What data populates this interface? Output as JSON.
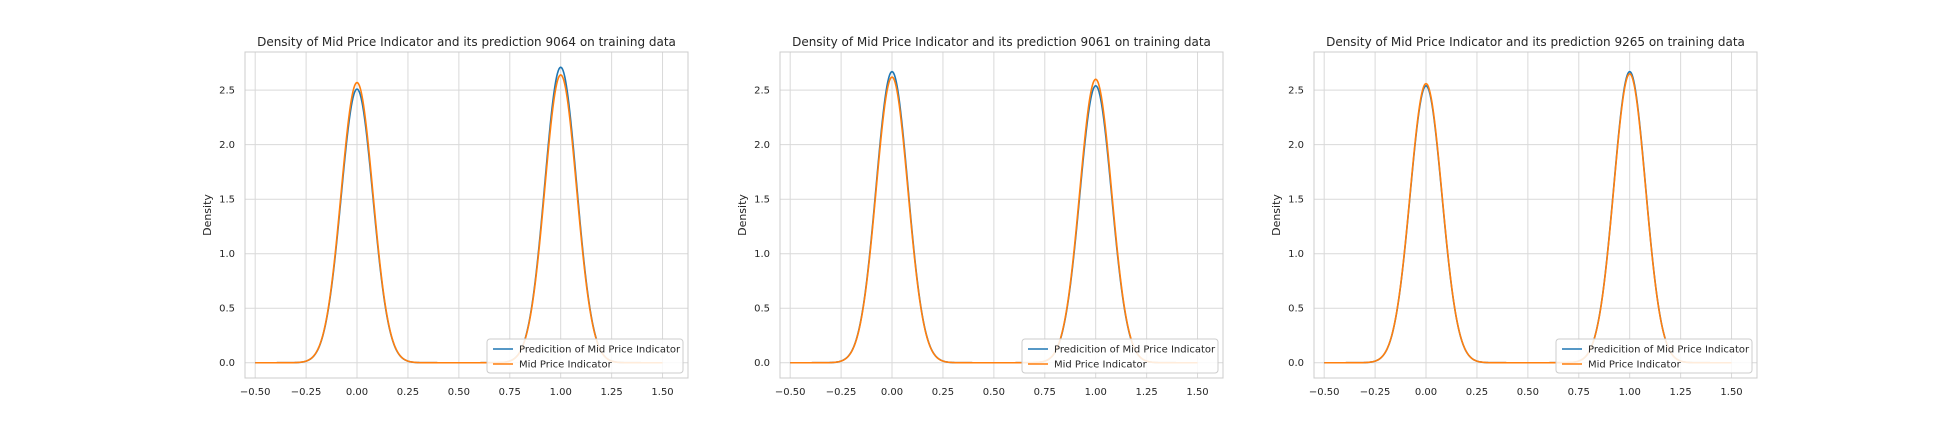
{
  "chart_data": [
    {
      "type": "line",
      "title": "Density of Mid Price Indicator and its prediction 9064 on training data",
      "xlabel": "",
      "ylabel": "Density",
      "xlim": [
        -0.55,
        1.625
      ],
      "ylim": [
        -0.14,
        2.85
      ],
      "xticks": [
        -0.5,
        -0.25,
        0.0,
        0.25,
        0.5,
        0.75,
        1.0,
        1.25,
        1.5
      ],
      "xtick_labels": [
        "−0.50",
        "−0.25",
        "0.00",
        "0.25",
        "0.50",
        "0.75",
        "1.00",
        "1.25",
        "1.50"
      ],
      "yticks": [
        0.0,
        0.5,
        1.0,
        1.5,
        2.0,
        2.5
      ],
      "ytick_labels": [
        "0.0",
        "0.5",
        "1.0",
        "1.5",
        "2.0",
        "2.5"
      ],
      "grid": true,
      "legend_position": "lower-right",
      "series": [
        {
          "name": "Predicition of Mid Price Indicator",
          "color": "#1f77b4",
          "peaks": [
            {
              "x": 0.0,
              "y": 2.51
            },
            {
              "x": 1.0,
              "y": 2.71
            }
          ]
        },
        {
          "name": "Mid Price Indicator",
          "color": "#ff7f0e",
          "peaks": [
            {
              "x": 0.0,
              "y": 2.57
            },
            {
              "x": 1.0,
              "y": 2.64
            }
          ]
        }
      ]
    },
    {
      "type": "line",
      "title": "Density of Mid Price Indicator and its prediction 9061 on training data",
      "xlabel": "",
      "ylabel": "Density",
      "xlim": [
        -0.55,
        1.625
      ],
      "ylim": [
        -0.14,
        2.85
      ],
      "xticks": [
        -0.5,
        -0.25,
        0.0,
        0.25,
        0.5,
        0.75,
        1.0,
        1.25,
        1.5
      ],
      "xtick_labels": [
        "−0.50",
        "−0.25",
        "0.00",
        "0.25",
        "0.50",
        "0.75",
        "1.00",
        "1.25",
        "1.50"
      ],
      "yticks": [
        0.0,
        0.5,
        1.0,
        1.5,
        2.0,
        2.5
      ],
      "ytick_labels": [
        "0.0",
        "0.5",
        "1.0",
        "1.5",
        "2.0",
        "2.5"
      ],
      "grid": true,
      "legend_position": "lower-right",
      "series": [
        {
          "name": "Predicition of Mid Price Indicator",
          "color": "#1f77b4",
          "peaks": [
            {
              "x": 0.0,
              "y": 2.67
            },
            {
              "x": 1.0,
              "y": 2.54
            }
          ]
        },
        {
          "name": "Mid Price Indicator",
          "color": "#ff7f0e",
          "peaks": [
            {
              "x": 0.0,
              "y": 2.62
            },
            {
              "x": 1.0,
              "y": 2.6
            }
          ]
        }
      ]
    },
    {
      "type": "line",
      "title": "Density of Mid Price Indicator and its prediction 9265 on training data",
      "xlabel": "",
      "ylabel": "Density",
      "xlim": [
        -0.55,
        1.625
      ],
      "ylim": [
        -0.14,
        2.85
      ],
      "xticks": [
        -0.5,
        -0.25,
        0.0,
        0.25,
        0.5,
        0.75,
        1.0,
        1.25,
        1.5
      ],
      "xtick_labels": [
        "−0.50",
        "−0.25",
        "0.00",
        "0.25",
        "0.50",
        "0.75",
        "1.00",
        "1.25",
        "1.50"
      ],
      "yticks": [
        0.0,
        0.5,
        1.0,
        1.5,
        2.0,
        2.5
      ],
      "ytick_labels": [
        "0.0",
        "0.5",
        "1.0",
        "1.5",
        "2.0",
        "2.5"
      ],
      "grid": true,
      "legend_position": "lower-right",
      "series": [
        {
          "name": "Predicition of Mid Price Indicator",
          "color": "#1f77b4",
          "peaks": [
            {
              "x": 0.0,
              "y": 2.54
            },
            {
              "x": 1.0,
              "y": 2.67
            }
          ]
        },
        {
          "name": "Mid Price Indicator",
          "color": "#ff7f0e",
          "peaks": [
            {
              "x": 0.0,
              "y": 2.56
            },
            {
              "x": 1.0,
              "y": 2.65
            }
          ]
        }
      ]
    }
  ]
}
